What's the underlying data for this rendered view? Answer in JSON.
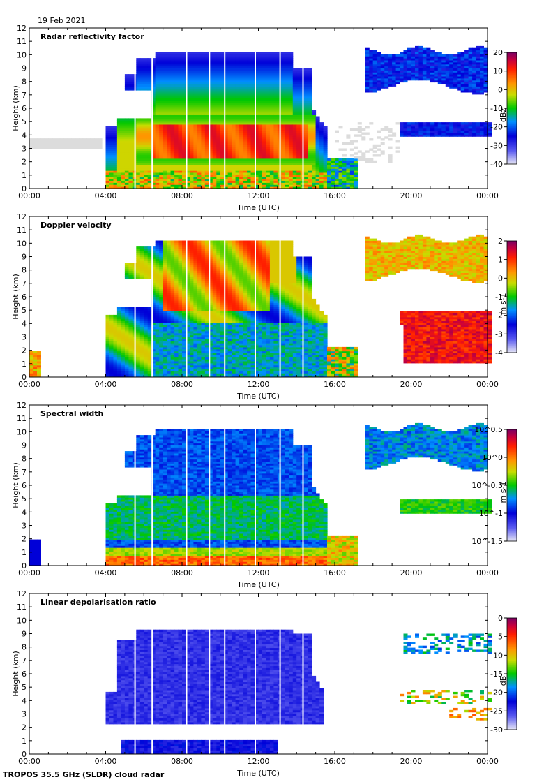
{
  "date": "19 Feb 2021",
  "footer": "TROPOS 35.5 GHz (SLDR) cloud radar",
  "chart_data": [
    {
      "type": "heatmap",
      "title": "Radar reflectivity factor",
      "xlabel": "Time (UTC)",
      "ylabel": "Height (km)",
      "xticks": [
        "00:00",
        "04:00",
        "08:00",
        "12:00",
        "16:00",
        "20:00",
        "00:00"
      ],
      "yticks": [
        "0",
        "1",
        "2",
        "3",
        "4",
        "5",
        "6",
        "7",
        "8",
        "9",
        "10",
        "11",
        "12"
      ],
      "ylim": [
        0,
        12
      ],
      "xlim_hours": [
        0,
        24
      ],
      "colorbar": {
        "label": "dBz",
        "ticks": [
          "20",
          "10",
          "0",
          "-10",
          "-20",
          "-30",
          "-40"
        ],
        "range": [
          -40,
          20
        ]
      },
      "features": [
        {
          "name": "main cloud system",
          "t_start": 4.0,
          "t_end": 15.5,
          "base_km": 0.0,
          "top_km": 10.3
        },
        {
          "name": "high reflectivity band",
          "t_start": 6.5,
          "t_end": 14.5,
          "base_km": 2.0,
          "top_km": 5.0
        },
        {
          "name": "upper cloud",
          "t_start": 17.5,
          "t_end": 24.0,
          "base_km": 7.5,
          "top_km": 10.5
        },
        {
          "name": "mid-level layer",
          "t_start": 19.5,
          "t_end": 24.0,
          "base_km": 3.8,
          "top_km": 5.0
        }
      ]
    },
    {
      "type": "heatmap",
      "title": "Doppler velocity",
      "xlabel": "Time (UTC)",
      "ylabel": "Height (km)",
      "xticks": [
        "00:00",
        "04:00",
        "08:00",
        "12:00",
        "16:00",
        "20:00",
        "00:00"
      ],
      "yticks": [
        "0",
        "1",
        "2",
        "3",
        "4",
        "5",
        "6",
        "7",
        "8",
        "9",
        "10",
        "11",
        "12"
      ],
      "ylim": [
        0,
        12
      ],
      "xlim_hours": [
        0,
        24
      ],
      "colorbar": {
        "label": "m s-1",
        "ticks": [
          "2",
          "1",
          "0",
          "-1",
          "-2",
          "-3",
          "-4"
        ],
        "range": [
          -4,
          2
        ]
      },
      "features": [
        {
          "name": "main cloud system",
          "t_start": 4.0,
          "t_end": 15.5,
          "base_km": 0.0,
          "top_km": 10.3
        },
        {
          "name": "upper cloud",
          "t_start": 17.5,
          "t_end": 24.0,
          "base_km": 7.5,
          "top_km": 10.5
        },
        {
          "name": "precipitation",
          "t_start": 19.5,
          "t_end": 24.0,
          "base_km": 1.0,
          "top_km": 5.0
        }
      ]
    },
    {
      "type": "heatmap",
      "title": "Spectral width",
      "xlabel": "Time (UTC)",
      "ylabel": "Height (km)",
      "xticks": [
        "00:00",
        "04:00",
        "08:00",
        "12:00",
        "16:00",
        "20:00",
        "00:00"
      ],
      "yticks": [
        "0",
        "1",
        "2",
        "3",
        "4",
        "5",
        "6",
        "7",
        "8",
        "9",
        "10",
        "11",
        "12"
      ],
      "ylim": [
        0,
        12
      ],
      "xlim_hours": [
        0,
        24
      ],
      "colorbar": {
        "label": "m s-1",
        "ticks": [
          "10^0.5",
          "10^0",
          "10^-0.5",
          "10^-1",
          "10^-1.5"
        ],
        "range": [
          -1.5,
          0.5
        ]
      },
      "features": [
        {
          "name": "main cloud system",
          "t_start": 4.0,
          "t_end": 15.5,
          "base_km": 0.0,
          "top_km": 10.3
        },
        {
          "name": "upper cloud",
          "t_start": 17.5,
          "t_end": 24.0,
          "base_km": 7.5,
          "top_km": 10.5
        },
        {
          "name": "mid-level layer",
          "t_start": 19.5,
          "t_end": 24.0,
          "base_km": 3.8,
          "top_km": 5.0
        }
      ]
    },
    {
      "type": "heatmap",
      "title": "Linear depolarisation ratio",
      "xlabel": "Time (UTC)",
      "ylabel": "Height (km)",
      "xticks": [
        "00:00",
        "04:00",
        "08:00",
        "12:00",
        "16:00",
        "20:00",
        "00:00"
      ],
      "yticks": [
        "0",
        "1",
        "2",
        "3",
        "4",
        "5",
        "6",
        "7",
        "8",
        "9",
        "10",
        "11",
        "12"
      ],
      "ylim": [
        0,
        12
      ],
      "xlim_hours": [
        0,
        24
      ],
      "colorbar": {
        "label": "dB",
        "ticks": [
          "0",
          "-5",
          "-10",
          "-15",
          "-20",
          "-25",
          "-30"
        ],
        "range": [
          -30,
          0
        ]
      },
      "features": [
        {
          "name": "main cloud system",
          "t_start": 4.0,
          "t_end": 15.5,
          "base_km": 0.0,
          "top_km": 9.3
        },
        {
          "name": "upper cloud",
          "t_start": 19.5,
          "t_end": 24.0,
          "base_km": 7.5,
          "top_km": 9.0
        }
      ]
    }
  ]
}
